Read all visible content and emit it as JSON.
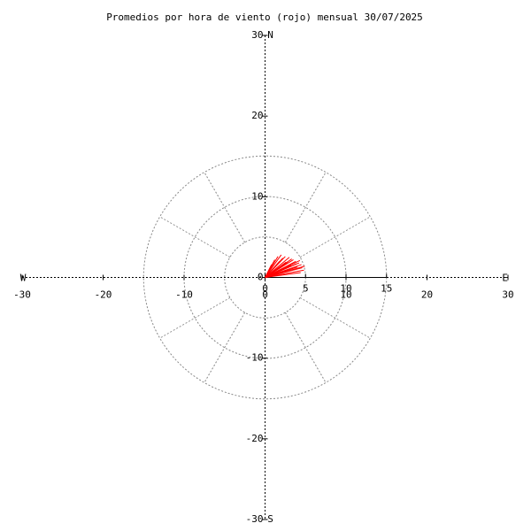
{
  "chart_data": {
    "type": "wind-vector",
    "title": "Promedios por hora de viento (rojo) mensual 30/07/2025",
    "xlim": [
      -30,
      30
    ],
    "ylim": [
      -30,
      30
    ],
    "xticks": [
      -30,
      -20,
      -10,
      0,
      10,
      20,
      30
    ],
    "yticks": [
      -30,
      -20,
      -10,
      0,
      10,
      20,
      30
    ],
    "rticks": [
      0,
      5,
      10,
      15
    ],
    "compass": [
      "N",
      "E",
      "S",
      "W"
    ],
    "color": "#ff0000",
    "u": [
      4.6,
      4.8,
      4.5,
      4.2,
      4.0,
      3.8,
      3.5,
      3.2,
      3.0,
      2.8,
      2.5,
      2.2,
      2.0,
      1.6,
      1.2,
      0.8,
      3.6,
      4.4,
      4.9,
      4.3,
      3.9,
      3.3,
      2.6,
      1.8
    ],
    "v": [
      1.2,
      0.9,
      1.6,
      1.8,
      1.3,
      2.0,
      2.2,
      1.5,
      2.5,
      1.9,
      2.6,
      2.4,
      2.8,
      2.6,
      2.2,
      1.6,
      1.0,
      0.6,
      1.4,
      2.1,
      1.7,
      2.3,
      1.9,
      2.0
    ]
  }
}
